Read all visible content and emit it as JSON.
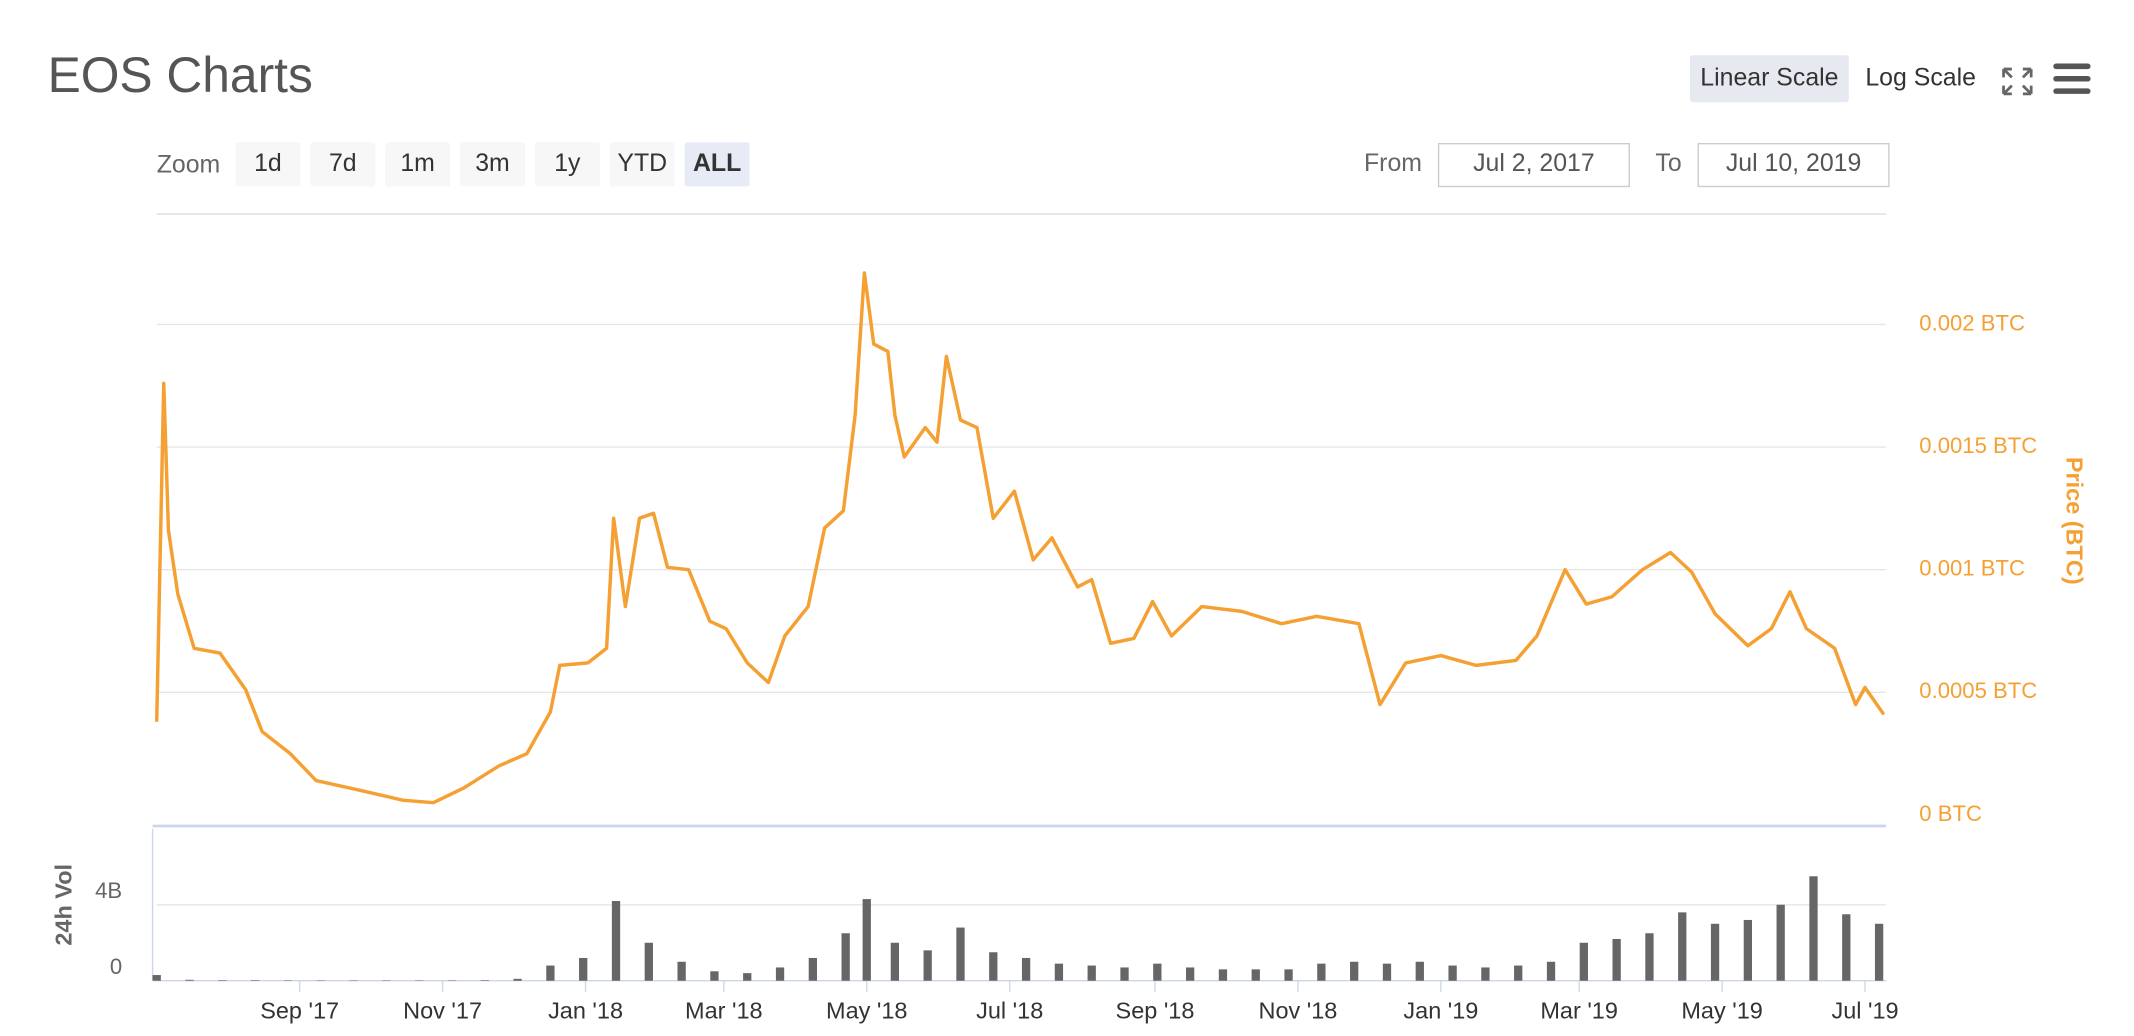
{
  "header": {
    "title": "EOS Charts",
    "scale_buttons": [
      "Linear Scale",
      "Log Scale"
    ],
    "active_scale": 0
  },
  "range_selector": {
    "zoom_label": "Zoom",
    "buttons": [
      "1d",
      "7d",
      "1m",
      "3m",
      "1y",
      "YTD",
      "ALL"
    ],
    "selected": 6,
    "from_label": "From",
    "from": "Jul 2, 2017",
    "to_label": "To",
    "to": "Jul 10, 2019"
  },
  "chart_data": [
    {
      "type": "line",
      "y_label": "Price (BTC)",
      "color": "#f5a033",
      "grid": true,
      "xlim": [
        "2017-07-02",
        "2019-07-10"
      ],
      "ylim": [
        0,
        0.00245
      ],
      "yticks": [
        {
          "value": 0,
          "label": "0 BTC"
        },
        {
          "value": 0.0005,
          "label": "0.0005 BTC"
        },
        {
          "value": 0.001,
          "label": "0.001 BTC"
        },
        {
          "value": 0.0015,
          "label": "0.0015 BTC"
        },
        {
          "value": 0.002,
          "label": "0.002 BTC"
        }
      ],
      "x": [
        "2017-07-02",
        "2017-07-05",
        "2017-07-07",
        "2017-07-11",
        "2017-07-18",
        "2017-07-29",
        "2017-08-09",
        "2017-08-16",
        "2017-08-28",
        "2017-09-08",
        "2017-09-27",
        "2017-10-15",
        "2017-10-28",
        "2017-11-10",
        "2017-11-25",
        "2017-12-07",
        "2017-12-17",
        "2017-12-21",
        "2018-01-02",
        "2018-01-10",
        "2018-01-13",
        "2018-01-18",
        "2018-01-24",
        "2018-01-30",
        "2018-02-05",
        "2018-02-14",
        "2018-02-23",
        "2018-03-02",
        "2018-03-11",
        "2018-03-20",
        "2018-03-27",
        "2018-04-06",
        "2018-04-13",
        "2018-04-21",
        "2018-04-26",
        "2018-04-30",
        "2018-05-04",
        "2018-05-10",
        "2018-05-13",
        "2018-05-17",
        "2018-05-26",
        "2018-05-31",
        "2018-06-04",
        "2018-06-10",
        "2018-06-17",
        "2018-06-24",
        "2018-07-03",
        "2018-07-11",
        "2018-07-19",
        "2018-07-30",
        "2018-08-05",
        "2018-08-13",
        "2018-08-23",
        "2018-08-31",
        "2018-09-08",
        "2018-09-21",
        "2018-10-08",
        "2018-10-25",
        "2018-11-09",
        "2018-11-27",
        "2018-12-06",
        "2018-12-17",
        "2019-01-01",
        "2019-01-16",
        "2019-02-02",
        "2019-02-11",
        "2019-02-19",
        "2019-02-23",
        "2019-03-04",
        "2019-03-15",
        "2019-03-28",
        "2019-04-09",
        "2019-04-18",
        "2019-04-28",
        "2019-05-12",
        "2019-05-22",
        "2019-05-30",
        "2019-06-06",
        "2019-06-18",
        "2019-06-27",
        "2019-07-01",
        "2019-07-09"
      ],
      "values": [
        0.00038,
        0.00176,
        0.00116,
        0.0009,
        0.00068,
        0.00066,
        0.00051,
        0.00034,
        0.00025,
        0.00014,
        0.0001,
        6e-05,
        5e-05,
        0.00011,
        0.0002,
        0.00025,
        0.00042,
        0.00061,
        0.00062,
        0.00068,
        0.00121,
        0.00085,
        0.00121,
        0.00123,
        0.00101,
        0.001,
        0.00079,
        0.00076,
        0.00062,
        0.00054,
        0.00073,
        0.00085,
        0.00117,
        0.00124,
        0.00163,
        0.00221,
        0.00192,
        0.00189,
        0.00163,
        0.00146,
        0.00158,
        0.00152,
        0.00187,
        0.00161,
        0.00158,
        0.00121,
        0.00132,
        0.00104,
        0.00113,
        0.00093,
        0.00096,
        0.0007,
        0.00072,
        0.00087,
        0.00073,
        0.00085,
        0.00083,
        0.00078,
        0.00081,
        0.00078,
        0.00045,
        0.00062,
        0.00065,
        0.00061,
        0.00063,
        0.00073,
        0.00091,
        0.001,
        0.00086,
        0.00089,
        0.001,
        0.00107,
        0.00099,
        0.00082,
        0.00069,
        0.00076,
        0.00091,
        0.00076,
        0.00068,
        0.00045,
        0.00052,
        0.00041
      ]
    },
    {
      "type": "bar",
      "y_label": "24h Vol",
      "color": "#666666",
      "grid": true,
      "xlim": [
        "2017-07-02",
        "2019-07-10"
      ],
      "ylim": [
        0,
        8000000000
      ],
      "yticks": [
        0,
        {
          "value": 4000000000,
          "label": "4B"
        }
      ],
      "xticks": [
        {
          "value": "2017-09-01",
          "label": "Sep '17"
        },
        {
          "value": "2017-11-01",
          "label": "Nov '17"
        },
        {
          "value": "2018-01-01",
          "label": "Jan '18"
        },
        {
          "value": "2018-03-01",
          "label": "Mar '18"
        },
        {
          "value": "2018-05-01",
          "label": "May '18"
        },
        {
          "value": "2018-07-01",
          "label": "Jul '18"
        },
        {
          "value": "2018-09-01",
          "label": "Sep '18"
        },
        {
          "value": "2018-11-01",
          "label": "Nov '18"
        },
        {
          "value": "2019-01-01",
          "label": "Jan '19"
        },
        {
          "value": "2019-03-01",
          "label": "Mar '19"
        },
        {
          "value": "2019-05-01",
          "label": "May '19"
        },
        {
          "value": "2019-07-01",
          "label": "Jul '19"
        }
      ],
      "x": [
        "2017-07-02",
        "2017-07-16",
        "2017-07-30",
        "2017-08-13",
        "2017-08-27",
        "2017-09-10",
        "2017-09-24",
        "2017-10-08",
        "2017-10-22",
        "2017-11-05",
        "2017-11-19",
        "2017-12-03",
        "2017-12-17",
        "2017-12-31",
        "2018-01-14",
        "2018-01-28",
        "2018-02-11",
        "2018-02-25",
        "2018-03-11",
        "2018-03-25",
        "2018-04-08",
        "2018-04-22",
        "2018-05-01",
        "2018-05-13",
        "2018-05-27",
        "2018-06-10",
        "2018-06-24",
        "2018-07-08",
        "2018-07-22",
        "2018-08-05",
        "2018-08-19",
        "2018-09-02",
        "2018-09-16",
        "2018-09-30",
        "2018-10-14",
        "2018-10-28",
        "2018-11-11",
        "2018-11-25",
        "2018-12-09",
        "2018-12-23",
        "2019-01-06",
        "2019-01-20",
        "2019-02-03",
        "2019-02-17",
        "2019-03-03",
        "2019-03-17",
        "2019-03-31",
        "2019-04-14",
        "2019-04-28",
        "2019-05-12",
        "2019-05-26",
        "2019-06-09",
        "2019-06-23",
        "2019-07-07"
      ],
      "values": [
        300000000,
        50000000,
        30000000,
        30000000,
        20000000,
        20000000,
        20000000,
        20000000,
        20000000,
        20000000,
        30000000,
        100000000,
        800000000,
        1200000000,
        4200000000,
        2000000000,
        1000000000,
        500000000,
        400000000,
        700000000,
        1200000000,
        2500000000,
        4300000000,
        2000000000,
        1600000000,
        2800000000,
        1500000000,
        1200000000,
        900000000,
        800000000,
        700000000,
        900000000,
        700000000,
        600000000,
        600000000,
        600000000,
        900000000,
        1000000000,
        900000000,
        1000000000,
        800000000,
        700000000,
        800000000,
        1000000000,
        2000000000,
        2200000000,
        2500000000,
        3600000000,
        3000000000,
        3200000000,
        4000000000,
        5500000000,
        3500000000,
        3000000000
      ]
    }
  ]
}
